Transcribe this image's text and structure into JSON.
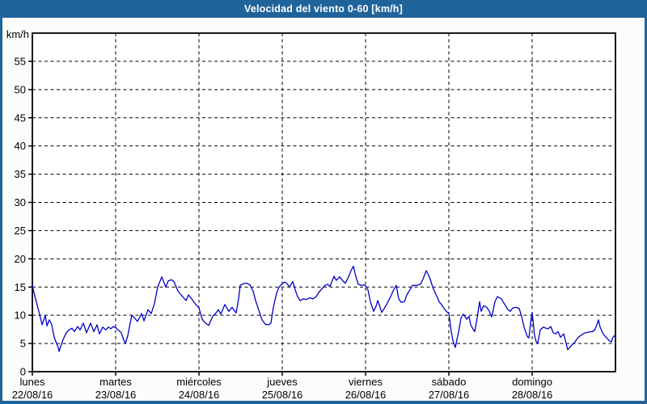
{
  "window": {
    "title": "Velocidad del viento 0-60 [km/h]"
  },
  "colors": {
    "frame": "#1F639B",
    "title_text": "#FFFFFF",
    "content_bg": "#FCFDFB",
    "plot_bg": "#FFFFFF",
    "axis": "#000000",
    "grid": "#000000",
    "label_text": "#000000",
    "line": "#0000C8"
  },
  "chart_data": {
    "type": "line",
    "title": "Velocidad del viento 0-60 [km/h]",
    "ylabel": "km/h",
    "xlabel": "",
    "ylim": [
      0,
      60
    ],
    "yticks": [
      0,
      5,
      10,
      15,
      20,
      25,
      30,
      35,
      40,
      45,
      50,
      55
    ],
    "grid": "dashed",
    "legend_position": "none",
    "x_axis": {
      "unit": "days",
      "range_days": [
        0,
        7
      ],
      "day_labels": [
        {
          "name": "lunes",
          "date": "22/08/16"
        },
        {
          "name": "martes",
          "date": "23/08/16"
        },
        {
          "name": "miércoles",
          "date": "24/08/16"
        },
        {
          "name": "jueves",
          "date": "25/08/16"
        },
        {
          "name": "viernes",
          "date": "26/08/16"
        },
        {
          "name": "sábado",
          "date": "27/08/16"
        },
        {
          "name": "domingo",
          "date": "28/08/16"
        }
      ]
    },
    "series": [
      {
        "name": "velocidad del viento",
        "units": "km/h",
        "color": "#0000C8",
        "points": [
          [
            0.0,
            15.4
          ],
          [
            0.019,
            14.0
          ],
          [
            0.039,
            12.9
          ],
          [
            0.078,
            10.7
          ],
          [
            0.117,
            8.3
          ],
          [
            0.155,
            10.0
          ],
          [
            0.175,
            8.1
          ],
          [
            0.204,
            9.2
          ],
          [
            0.233,
            8.3
          ],
          [
            0.262,
            6.1
          ],
          [
            0.291,
            5.0
          ],
          [
            0.311,
            4.3
          ],
          [
            0.32,
            3.6
          ],
          [
            0.35,
            4.9
          ],
          [
            0.369,
            5.7
          ],
          [
            0.408,
            6.9
          ],
          [
            0.437,
            7.4
          ],
          [
            0.476,
            7.7
          ],
          [
            0.505,
            7.1
          ],
          [
            0.544,
            8.0
          ],
          [
            0.573,
            7.4
          ],
          [
            0.612,
            8.6
          ],
          [
            0.65,
            6.9
          ],
          [
            0.699,
            8.6
          ],
          [
            0.738,
            7.1
          ],
          [
            0.777,
            8.3
          ],
          [
            0.806,
            6.7
          ],
          [
            0.845,
            7.9
          ],
          [
            0.883,
            7.4
          ],
          [
            0.913,
            7.9
          ],
          [
            0.942,
            7.6
          ],
          [
            0.971,
            8.0
          ],
          [
            1.0,
            7.8
          ],
          [
            1.029,
            7.4
          ],
          [
            1.068,
            6.9
          ],
          [
            1.097,
            5.6
          ],
          [
            1.117,
            5.0
          ],
          [
            1.146,
            6.4
          ],
          [
            1.175,
            8.6
          ],
          [
            1.194,
            10.0
          ],
          [
            1.223,
            9.6
          ],
          [
            1.262,
            8.9
          ],
          [
            1.311,
            10.3
          ],
          [
            1.34,
            9.0
          ],
          [
            1.388,
            11.0
          ],
          [
            1.427,
            10.3
          ],
          [
            1.466,
            12.1
          ],
          [
            1.505,
            15.0
          ],
          [
            1.553,
            16.8
          ],
          [
            1.602,
            15.0
          ],
          [
            1.631,
            16.1
          ],
          [
            1.67,
            16.3
          ],
          [
            1.699,
            16.0
          ],
          [
            1.748,
            14.3
          ],
          [
            1.786,
            13.6
          ],
          [
            1.816,
            13.1
          ],
          [
            1.845,
            12.6
          ],
          [
            1.874,
            13.6
          ],
          [
            1.913,
            12.9
          ],
          [
            1.951,
            12.1
          ],
          [
            2.0,
            11.3
          ],
          [
            2.039,
            9.3
          ],
          [
            2.078,
            8.6
          ],
          [
            2.117,
            8.2
          ],
          [
            2.165,
            9.8
          ],
          [
            2.204,
            10.4
          ],
          [
            2.233,
            11.0
          ],
          [
            2.262,
            10.2
          ],
          [
            2.311,
            11.9
          ],
          [
            2.359,
            10.7
          ],
          [
            2.398,
            11.4
          ],
          [
            2.447,
            10.4
          ],
          [
            2.476,
            12.9
          ],
          [
            2.495,
            15.3
          ],
          [
            2.534,
            15.6
          ],
          [
            2.573,
            15.7
          ],
          [
            2.612,
            15.4
          ],
          [
            2.65,
            14.3
          ],
          [
            2.68,
            12.6
          ],
          [
            2.718,
            10.9
          ],
          [
            2.757,
            9.2
          ],
          [
            2.796,
            8.4
          ],
          [
            2.835,
            8.3
          ],
          [
            2.864,
            8.6
          ],
          [
            2.893,
            11.4
          ],
          [
            2.932,
            13.9
          ],
          [
            2.961,
            15.0
          ],
          [
            3.0,
            15.6
          ],
          [
            3.029,
            15.9
          ],
          [
            3.058,
            15.6
          ],
          [
            3.087,
            15.0
          ],
          [
            3.126,
            16.0
          ],
          [
            3.155,
            14.5
          ],
          [
            3.184,
            13.3
          ],
          [
            3.214,
            12.6
          ],
          [
            3.252,
            12.9
          ],
          [
            3.291,
            12.8
          ],
          [
            3.33,
            13.1
          ],
          [
            3.369,
            12.9
          ],
          [
            3.408,
            13.3
          ],
          [
            3.437,
            14.0
          ],
          [
            3.476,
            14.7
          ],
          [
            3.515,
            15.3
          ],
          [
            3.544,
            15.5
          ],
          [
            3.573,
            15.1
          ],
          [
            3.621,
            16.9
          ],
          [
            3.65,
            16.2
          ],
          [
            3.689,
            16.8
          ],
          [
            3.728,
            16.1
          ],
          [
            3.757,
            15.7
          ],
          [
            3.796,
            16.8
          ],
          [
            3.825,
            17.9
          ],
          [
            3.854,
            18.7
          ],
          [
            3.883,
            16.9
          ],
          [
            3.913,
            15.5
          ],
          [
            3.951,
            15.3
          ],
          [
            3.981,
            15.4
          ],
          [
            4.0,
            15.2
          ],
          [
            4.029,
            14.5
          ],
          [
            4.058,
            12.4
          ],
          [
            4.097,
            10.7
          ],
          [
            4.126,
            11.6
          ],
          [
            4.146,
            12.6
          ],
          [
            4.175,
            11.4
          ],
          [
            4.194,
            10.5
          ],
          [
            4.223,
            11.2
          ],
          [
            4.252,
            11.9
          ],
          [
            4.301,
            13.3
          ],
          [
            4.33,
            14.3
          ],
          [
            4.369,
            15.3
          ],
          [
            4.398,
            12.9
          ],
          [
            4.427,
            12.3
          ],
          [
            4.466,
            12.4
          ],
          [
            4.495,
            13.6
          ],
          [
            4.524,
            14.3
          ],
          [
            4.563,
            15.3
          ],
          [
            4.612,
            15.3
          ],
          [
            4.66,
            15.5
          ],
          [
            4.689,
            16.4
          ],
          [
            4.728,
            17.9
          ],
          [
            4.757,
            17.1
          ],
          [
            4.777,
            16.4
          ],
          [
            4.806,
            15.0
          ],
          [
            4.835,
            14.0
          ],
          [
            4.864,
            13.1
          ],
          [
            4.883,
            12.4
          ],
          [
            4.913,
            11.9
          ],
          [
            4.942,
            11.2
          ],
          [
            4.971,
            10.7
          ],
          [
            5.0,
            10.3
          ],
          [
            5.029,
            7.1
          ],
          [
            5.049,
            5.5
          ],
          [
            5.078,
            4.3
          ],
          [
            5.097,
            5.7
          ],
          [
            5.117,
            7.1
          ],
          [
            5.146,
            9.5
          ],
          [
            5.175,
            10.2
          ],
          [
            5.214,
            9.3
          ],
          [
            5.243,
            9.8
          ],
          [
            5.262,
            8.3
          ],
          [
            5.291,
            7.5
          ],
          [
            5.311,
            7.1
          ],
          [
            5.34,
            9.5
          ],
          [
            5.369,
            12.4
          ],
          [
            5.388,
            10.7
          ],
          [
            5.417,
            11.7
          ],
          [
            5.456,
            11.4
          ],
          [
            5.485,
            10.7
          ],
          [
            5.515,
            9.7
          ],
          [
            5.553,
            12.4
          ],
          [
            5.583,
            13.3
          ],
          [
            5.631,
            12.9
          ],
          [
            5.68,
            11.7
          ],
          [
            5.709,
            11.0
          ],
          [
            5.738,
            10.7
          ],
          [
            5.767,
            11.3
          ],
          [
            5.806,
            11.4
          ],
          [
            5.845,
            11.2
          ],
          [
            5.874,
            9.8
          ],
          [
            5.903,
            7.9
          ],
          [
            5.942,
            6.2
          ],
          [
            5.961,
            6.0
          ],
          [
            5.981,
            8.6
          ],
          [
            6.0,
            10.5
          ],
          [
            6.029,
            6.4
          ],
          [
            6.049,
            5.3
          ],
          [
            6.068,
            5.1
          ],
          [
            6.097,
            7.4
          ],
          [
            6.136,
            7.9
          ],
          [
            6.165,
            7.7
          ],
          [
            6.194,
            7.6
          ],
          [
            6.223,
            8.0
          ],
          [
            6.252,
            6.9
          ],
          [
            6.282,
            6.7
          ],
          [
            6.311,
            7.1
          ],
          [
            6.34,
            6.1
          ],
          [
            6.379,
            6.7
          ],
          [
            6.408,
            5.0
          ],
          [
            6.427,
            3.9
          ],
          [
            6.476,
            4.7
          ],
          [
            6.505,
            5.1
          ],
          [
            6.553,
            6.1
          ],
          [
            6.583,
            6.4
          ],
          [
            6.621,
            6.8
          ],
          [
            6.67,
            7.0
          ],
          [
            6.718,
            7.1
          ],
          [
            6.748,
            7.3
          ],
          [
            6.777,
            8.3
          ],
          [
            6.796,
            9.2
          ],
          [
            6.816,
            7.9
          ],
          [
            6.845,
            6.9
          ],
          [
            6.874,
            6.3
          ],
          [
            6.913,
            5.7
          ],
          [
            6.932,
            5.4
          ],
          [
            6.951,
            5.3
          ],
          [
            6.971,
            6.1
          ],
          [
            6.99,
            6.4
          ]
        ]
      }
    ]
  }
}
